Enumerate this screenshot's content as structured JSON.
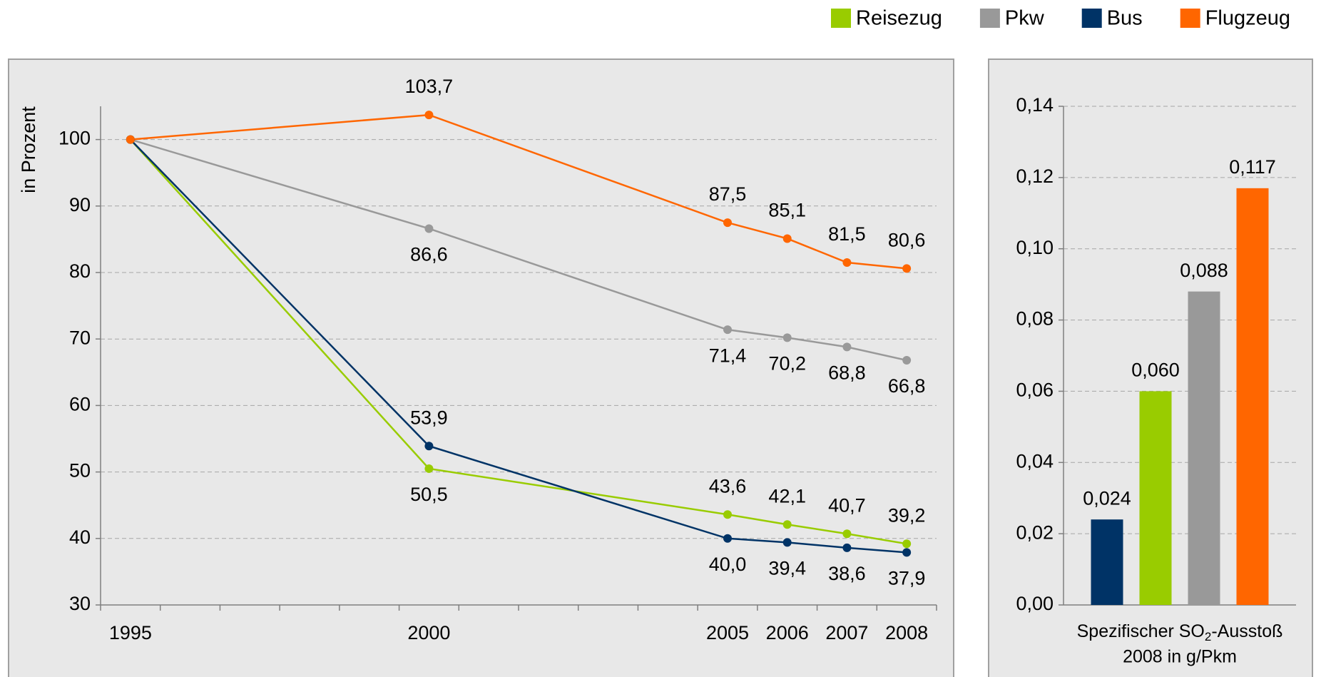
{
  "chart_data": [
    {
      "type": "line",
      "y_label": "in Prozent",
      "x": [
        1995,
        2000,
        2005,
        2006,
        2007,
        2008
      ],
      "xlim": [
        1994.5,
        2008.5
      ],
      "xticks": [
        1995,
        2000,
        2005,
        2006,
        2007,
        2008
      ],
      "ylim": [
        30,
        105
      ],
      "yticks": [
        30,
        40,
        50,
        60,
        70,
        80,
        90,
        100
      ],
      "grid": true,
      "legend": "top-right",
      "series": [
        {
          "name": "Reisezug",
          "color": "#99cc00",
          "values": [
            100,
            50.5,
            43.6,
            42.1,
            40.7,
            39.2
          ],
          "value_labels": [
            null,
            "50,5",
            "43,6",
            "42,1",
            "40,7",
            "39,2"
          ]
        },
        {
          "name": "Pkw",
          "color": "#999999",
          "values": [
            100,
            86.6,
            71.4,
            70.2,
            68.8,
            66.8
          ],
          "value_labels": [
            null,
            "86,6",
            "71,4",
            "70,2",
            "68,8",
            "66,8"
          ]
        },
        {
          "name": "Bus",
          "color": "#003366",
          "values": [
            100,
            53.9,
            40.0,
            39.4,
            38.6,
            37.9
          ],
          "value_labels": [
            null,
            "53,9",
            "40,0",
            "39,4",
            "38,6",
            "37,9"
          ]
        },
        {
          "name": "Flugzeug",
          "color": "#ff6600",
          "values": [
            100,
            103.7,
            87.5,
            85.1,
            81.5,
            80.6
          ],
          "value_labels": [
            null,
            "103,7",
            "87,5",
            "85,1",
            "81,5",
            "80,6"
          ]
        }
      ]
    },
    {
      "type": "bar",
      "x_label": {
        "text": "Spezifischer SO",
        "sub": "2",
        "after": "-Ausstoß",
        "line2": "2008 in g/Pkm"
      },
      "values": [
        0.024,
        0.06,
        0.088,
        0.117
      ],
      "value_labels": [
        "0,024",
        "0,060",
        "0,088",
        "0,117"
      ],
      "colors": [
        "#003366",
        "#99cc00",
        "#999999",
        "#ff6600"
      ],
      "ylim": [
        0,
        0.14
      ],
      "yticks": [
        {
          "value": 0,
          "label": "0,00"
        },
        {
          "value": 0.02,
          "label": "0,02"
        },
        {
          "value": 0.04,
          "label": "0,04"
        },
        {
          "value": 0.06,
          "label": "0,06"
        },
        {
          "value": 0.08,
          "label": "0,08"
        },
        {
          "value": 0.1,
          "label": "0,10"
        },
        {
          "value": 0.12,
          "label": "0,12"
        },
        {
          "value": 0.14,
          "label": "0,14"
        }
      ],
      "grid": true
    }
  ]
}
